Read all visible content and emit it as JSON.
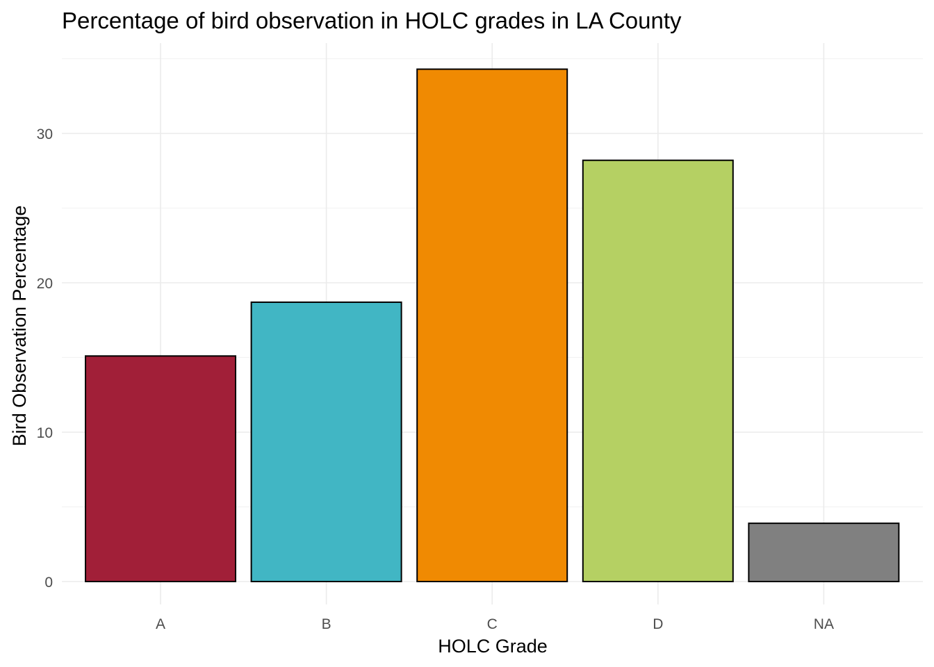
{
  "chart_data": {
    "type": "bar",
    "title": "Percentage of bird observation in HOLC grades in LA County",
    "xlabel": "HOLC Grade",
    "ylabel": "Bird Observation Percentage",
    "categories": [
      "A",
      "B",
      "C",
      "D",
      "NA"
    ],
    "values": [
      15.1,
      18.7,
      34.3,
      28.2,
      3.9
    ],
    "colors": [
      "#a11f38",
      "#41b6c4",
      "#f08a02",
      "#b5d063",
      "#808080"
    ],
    "ylim": [
      0,
      35.9
    ],
    "yticks": [
      0,
      10,
      20,
      30
    ],
    "grid": true,
    "legend": "none"
  }
}
